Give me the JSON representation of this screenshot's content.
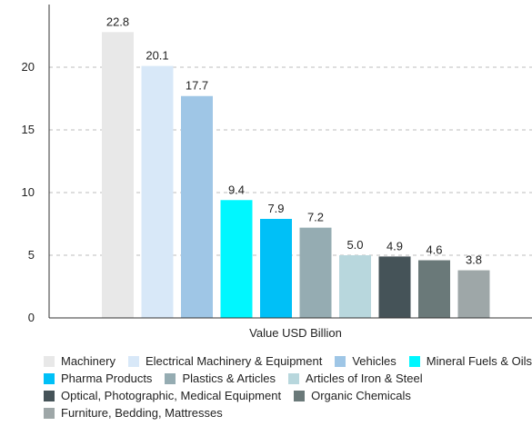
{
  "chart_data": {
    "type": "bar",
    "title": "",
    "xlabel": "Value USD Billion",
    "ylabel": "",
    "ylim": [
      0,
      25
    ],
    "yticks": [
      0,
      5,
      10,
      15,
      20
    ],
    "grid": true,
    "legend_position": "bottom",
    "categories": [
      "Machinery",
      "Electrical Machinery & Equipment",
      "Vehicles",
      "Mineral Fuels & Oils",
      "Pharma Products",
      "Plastics & Articles",
      "Articles of Iron & Steel",
      "Optical, Photographic, Medical Equipment",
      "Organic Chemicals",
      "Furniture, Bedding, Mattresses"
    ],
    "values": [
      22.8,
      20.1,
      17.7,
      9.4,
      7.9,
      7.2,
      5.0,
      4.9,
      4.6,
      3.8
    ],
    "value_labels": [
      "22.8",
      "20.1",
      "17.7",
      "9.4",
      "7.9",
      "7.2",
      "5.0",
      "4.9",
      "4.6",
      "3.8"
    ],
    "colors": [
      "#e8e8e8",
      "#d8e8f8",
      "#9fc6e6",
      "#00f7ff",
      "#00c0f7",
      "#95acb2",
      "#b8d7dd",
      "#455358",
      "#6a7979",
      "#9ea7a8"
    ]
  }
}
